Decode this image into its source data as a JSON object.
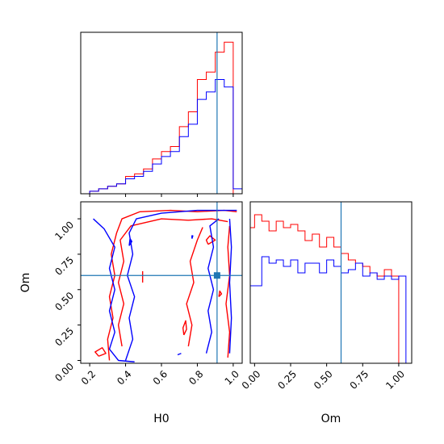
{
  "chart_data": [
    {
      "type": "histogram",
      "panel": "H0 marginal",
      "xlabel": "",
      "ylabel": "",
      "xlim": [
        0.15,
        1.05
      ],
      "truth": 0.91,
      "bin_edges": [
        0.15,
        0.2,
        0.25,
        0.3,
        0.35,
        0.4,
        0.45,
        0.5,
        0.55,
        0.6,
        0.65,
        0.7,
        0.75,
        0.8,
        0.85,
        0.9,
        0.95,
        1.0,
        1.05
      ],
      "series": [
        {
          "color": "#ff0000",
          "values": [
            0,
            1,
            2,
            3,
            4,
            7,
            8,
            10,
            14,
            17,
            19,
            27,
            33,
            46,
            49,
            57,
            61,
            0
          ]
        },
        {
          "color": "#0000ff",
          "values": [
            0,
            1,
            2,
            3,
            4,
            6,
            7,
            9,
            12,
            15,
            17,
            23,
            28,
            38,
            41,
            46,
            43,
            2
          ]
        }
      ]
    },
    {
      "type": "contour",
      "panel": "H0 vs Om",
      "xlabel": "H0",
      "ylabel": "Om",
      "xlim": [
        0.15,
        1.05
      ],
      "ylim": [
        -0.02,
        1.12
      ],
      "xticks": [
        "0.2",
        "0.4",
        "0.6",
        "0.8",
        "1.0"
      ],
      "yticks": [
        "0.00",
        "0.25",
        "0.50",
        "0.75",
        "1.00"
      ],
      "truth": {
        "x": 0.91,
        "y": 0.6
      },
      "series": [
        {
          "color": "#ff0000",
          "paths": [
            [
              [
                0.31,
                0.0
              ],
              [
                0.3,
                0.15
              ],
              [
                0.33,
                0.3
              ],
              [
                0.31,
                0.45
              ],
              [
                0.34,
                0.6
              ],
              [
                0.32,
                0.75
              ],
              [
                0.35,
                0.9
              ],
              [
                0.38,
                1.0
              ],
              [
                0.48,
                1.05
              ],
              [
                0.65,
                1.06
              ],
              [
                0.8,
                1.05
              ],
              [
                0.95,
                1.06
              ],
              [
                1.02,
                1.05
              ]
            ],
            [
              [
                0.38,
                0.1
              ],
              [
                0.36,
                0.25
              ],
              [
                0.39,
                0.4
              ],
              [
                0.36,
                0.55
              ],
              [
                0.39,
                0.7
              ],
              [
                0.37,
                0.85
              ],
              [
                0.43,
                0.95
              ],
              [
                0.6,
                1.0
              ],
              [
                0.75,
                0.99
              ],
              [
                0.88,
                1.0
              ],
              [
                0.97,
                0.98
              ]
            ],
            [
              [
                0.75,
                0.1
              ],
              [
                0.77,
                0.25
              ],
              [
                0.74,
                0.4
              ],
              [
                0.78,
                0.55
              ],
              [
                0.76,
                0.7
              ],
              [
                0.8,
                0.85
              ],
              [
                0.83,
                0.94
              ]
            ],
            [
              [
                0.97,
                0.02
              ],
              [
                0.98,
                0.2
              ],
              [
                0.96,
                0.4
              ],
              [
                0.98,
                0.6
              ],
              [
                0.97,
                0.8
              ],
              [
                0.98,
                0.95
              ]
            ],
            [
              [
                0.25,
                0.03
              ],
              [
                0.29,
                0.05
              ],
              [
                0.27,
                0.09
              ],
              [
                0.23,
                0.06
              ],
              [
                0.25,
                0.03
              ]
            ],
            [
              [
                0.495,
                0.55
              ],
              [
                0.495,
                0.63
              ]
            ],
            [
              [
                0.725,
                0.18
              ],
              [
                0.74,
                0.22
              ],
              [
                0.735,
                0.28
              ],
              [
                0.72,
                0.23
              ],
              [
                0.725,
                0.18
              ]
            ],
            [
              [
                0.92,
                0.45
              ],
              [
                0.935,
                0.47
              ],
              [
                0.925,
                0.49
              ],
              [
                0.92,
                0.45
              ]
            ],
            [
              [
                0.86,
                0.82
              ],
              [
                0.9,
                0.85
              ],
              [
                0.87,
                0.88
              ],
              [
                0.85,
                0.85
              ],
              [
                0.86,
                0.82
              ]
            ]
          ]
        },
        {
          "color": "#0000ff",
          "paths": [
            [
              [
                0.22,
                1.0
              ],
              [
                0.28,
                0.93
              ],
              [
                0.34,
                0.8
              ],
              [
                0.31,
                0.65
              ],
              [
                0.34,
                0.5
              ],
              [
                0.31,
                0.35
              ],
              [
                0.34,
                0.2
              ],
              [
                0.31,
                0.08
              ],
              [
                0.36,
                0.0
              ],
              [
                0.45,
                -0.01
              ]
            ],
            [
              [
                0.4,
                0.0
              ],
              [
                0.44,
                0.15
              ],
              [
                0.42,
                0.3
              ],
              [
                0.45,
                0.45
              ],
              [
                0.41,
                0.6
              ],
              [
                0.44,
                0.75
              ],
              [
                0.42,
                0.9
              ],
              [
                0.46,
                1.0
              ],
              [
                0.6,
                1.04
              ],
              [
                0.8,
                1.06
              ],
              [
                1.02,
                1.06
              ]
            ],
            [
              [
                0.85,
                0.05
              ],
              [
                0.88,
                0.2
              ],
              [
                0.86,
                0.35
              ],
              [
                0.89,
                0.5
              ],
              [
                0.86,
                0.65
              ],
              [
                0.89,
                0.8
              ],
              [
                0.87,
                0.95
              ],
              [
                0.92,
                1.0
              ]
            ],
            [
              [
                0.98,
                0.05
              ],
              [
                0.99,
                0.3
              ],
              [
                0.98,
                0.55
              ],
              [
                0.99,
                0.8
              ],
              [
                0.98,
                1.0
              ]
            ],
            [
              [
                0.42,
                0.81
              ],
              [
                0.435,
                0.84
              ],
              [
                0.425,
                0.86
              ],
              [
                0.42,
                0.81
              ]
            ],
            [
              [
                0.77,
                0.86
              ],
              [
                0.775,
                0.88
              ],
              [
                0.77,
                0.88
              ],
              [
                0.77,
                0.86
              ]
            ],
            [
              [
                0.69,
                0.04
              ],
              [
                0.71,
                0.05
              ]
            ]
          ]
        }
      ]
    },
    {
      "type": "histogram",
      "panel": "Om marginal",
      "xlabel": "Om",
      "ylabel": "",
      "xlim": [
        -0.03,
        1.09
      ],
      "xticks": [
        "0.00",
        "0.25",
        "0.50",
        "0.75",
        "1.00"
      ],
      "truth": 0.6,
      "bin_edges": [
        -0.03,
        0.0,
        0.05,
        0.1,
        0.15,
        0.2,
        0.25,
        0.3,
        0.35,
        0.4,
        0.45,
        0.5,
        0.55,
        0.6,
        0.65,
        0.7,
        0.75,
        0.8,
        0.85,
        0.9,
        0.95,
        1.0,
        1.05
      ],
      "series": [
        {
          "color": "#ff0000",
          "values": [
            42,
            46,
            44,
            41,
            44,
            42,
            43,
            41,
            38,
            40,
            36,
            39,
            36,
            34,
            32,
            31,
            30,
            28,
            27,
            29,
            27,
            0
          ]
        },
        {
          "color": "#0000ff",
          "values": [
            24,
            24,
            33,
            31,
            32,
            30,
            32,
            28,
            31,
            31,
            28,
            32,
            30,
            28,
            29,
            31,
            27,
            28,
            26,
            27,
            26,
            27
          ]
        }
      ]
    }
  ]
}
